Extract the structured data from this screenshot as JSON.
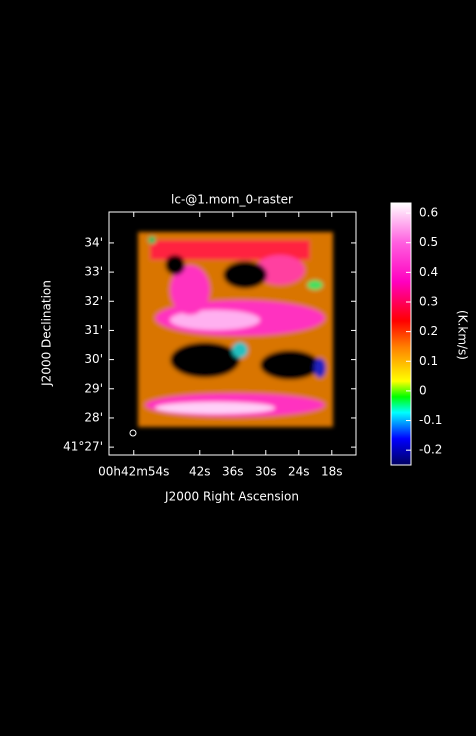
{
  "chart_data": {
    "type": "raster",
    "title": "lc-@1.mom_0-raster",
    "x_label": "J2000 Right Ascension",
    "y_label": "J2000 Declination",
    "xlim": [
      58.5,
      13.6
    ],
    "xticks": [
      {
        "value": 54,
        "label": "00h42m54s"
      },
      {
        "value": 42,
        "label": "42s"
      },
      {
        "value": 36,
        "label": "36s"
      },
      {
        "value": 30,
        "label": "30s"
      },
      {
        "value": 24,
        "label": "24s"
      },
      {
        "value": 18,
        "label": "18s"
      }
    ],
    "ylim": [
      26.73,
      35.06
    ],
    "yticks": [
      {
        "value": 27,
        "label": "41°27'"
      },
      {
        "value": 28,
        "label": "28'"
      },
      {
        "value": 29,
        "label": "29'"
      },
      {
        "value": 30,
        "label": "30'"
      },
      {
        "value": 31,
        "label": "31'"
      },
      {
        "value": 32,
        "label": "32'"
      },
      {
        "value": 33,
        "label": "33'"
      },
      {
        "value": 34,
        "label": "34'"
      }
    ],
    "colorbar": {
      "label": "(K.km/s)",
      "lim": [
        -0.25,
        0.634
      ],
      "ticks": [
        -0.2,
        -0.1,
        0,
        0.1,
        0.2,
        0.3,
        0.4,
        0.5,
        0.6
      ]
    }
  }
}
